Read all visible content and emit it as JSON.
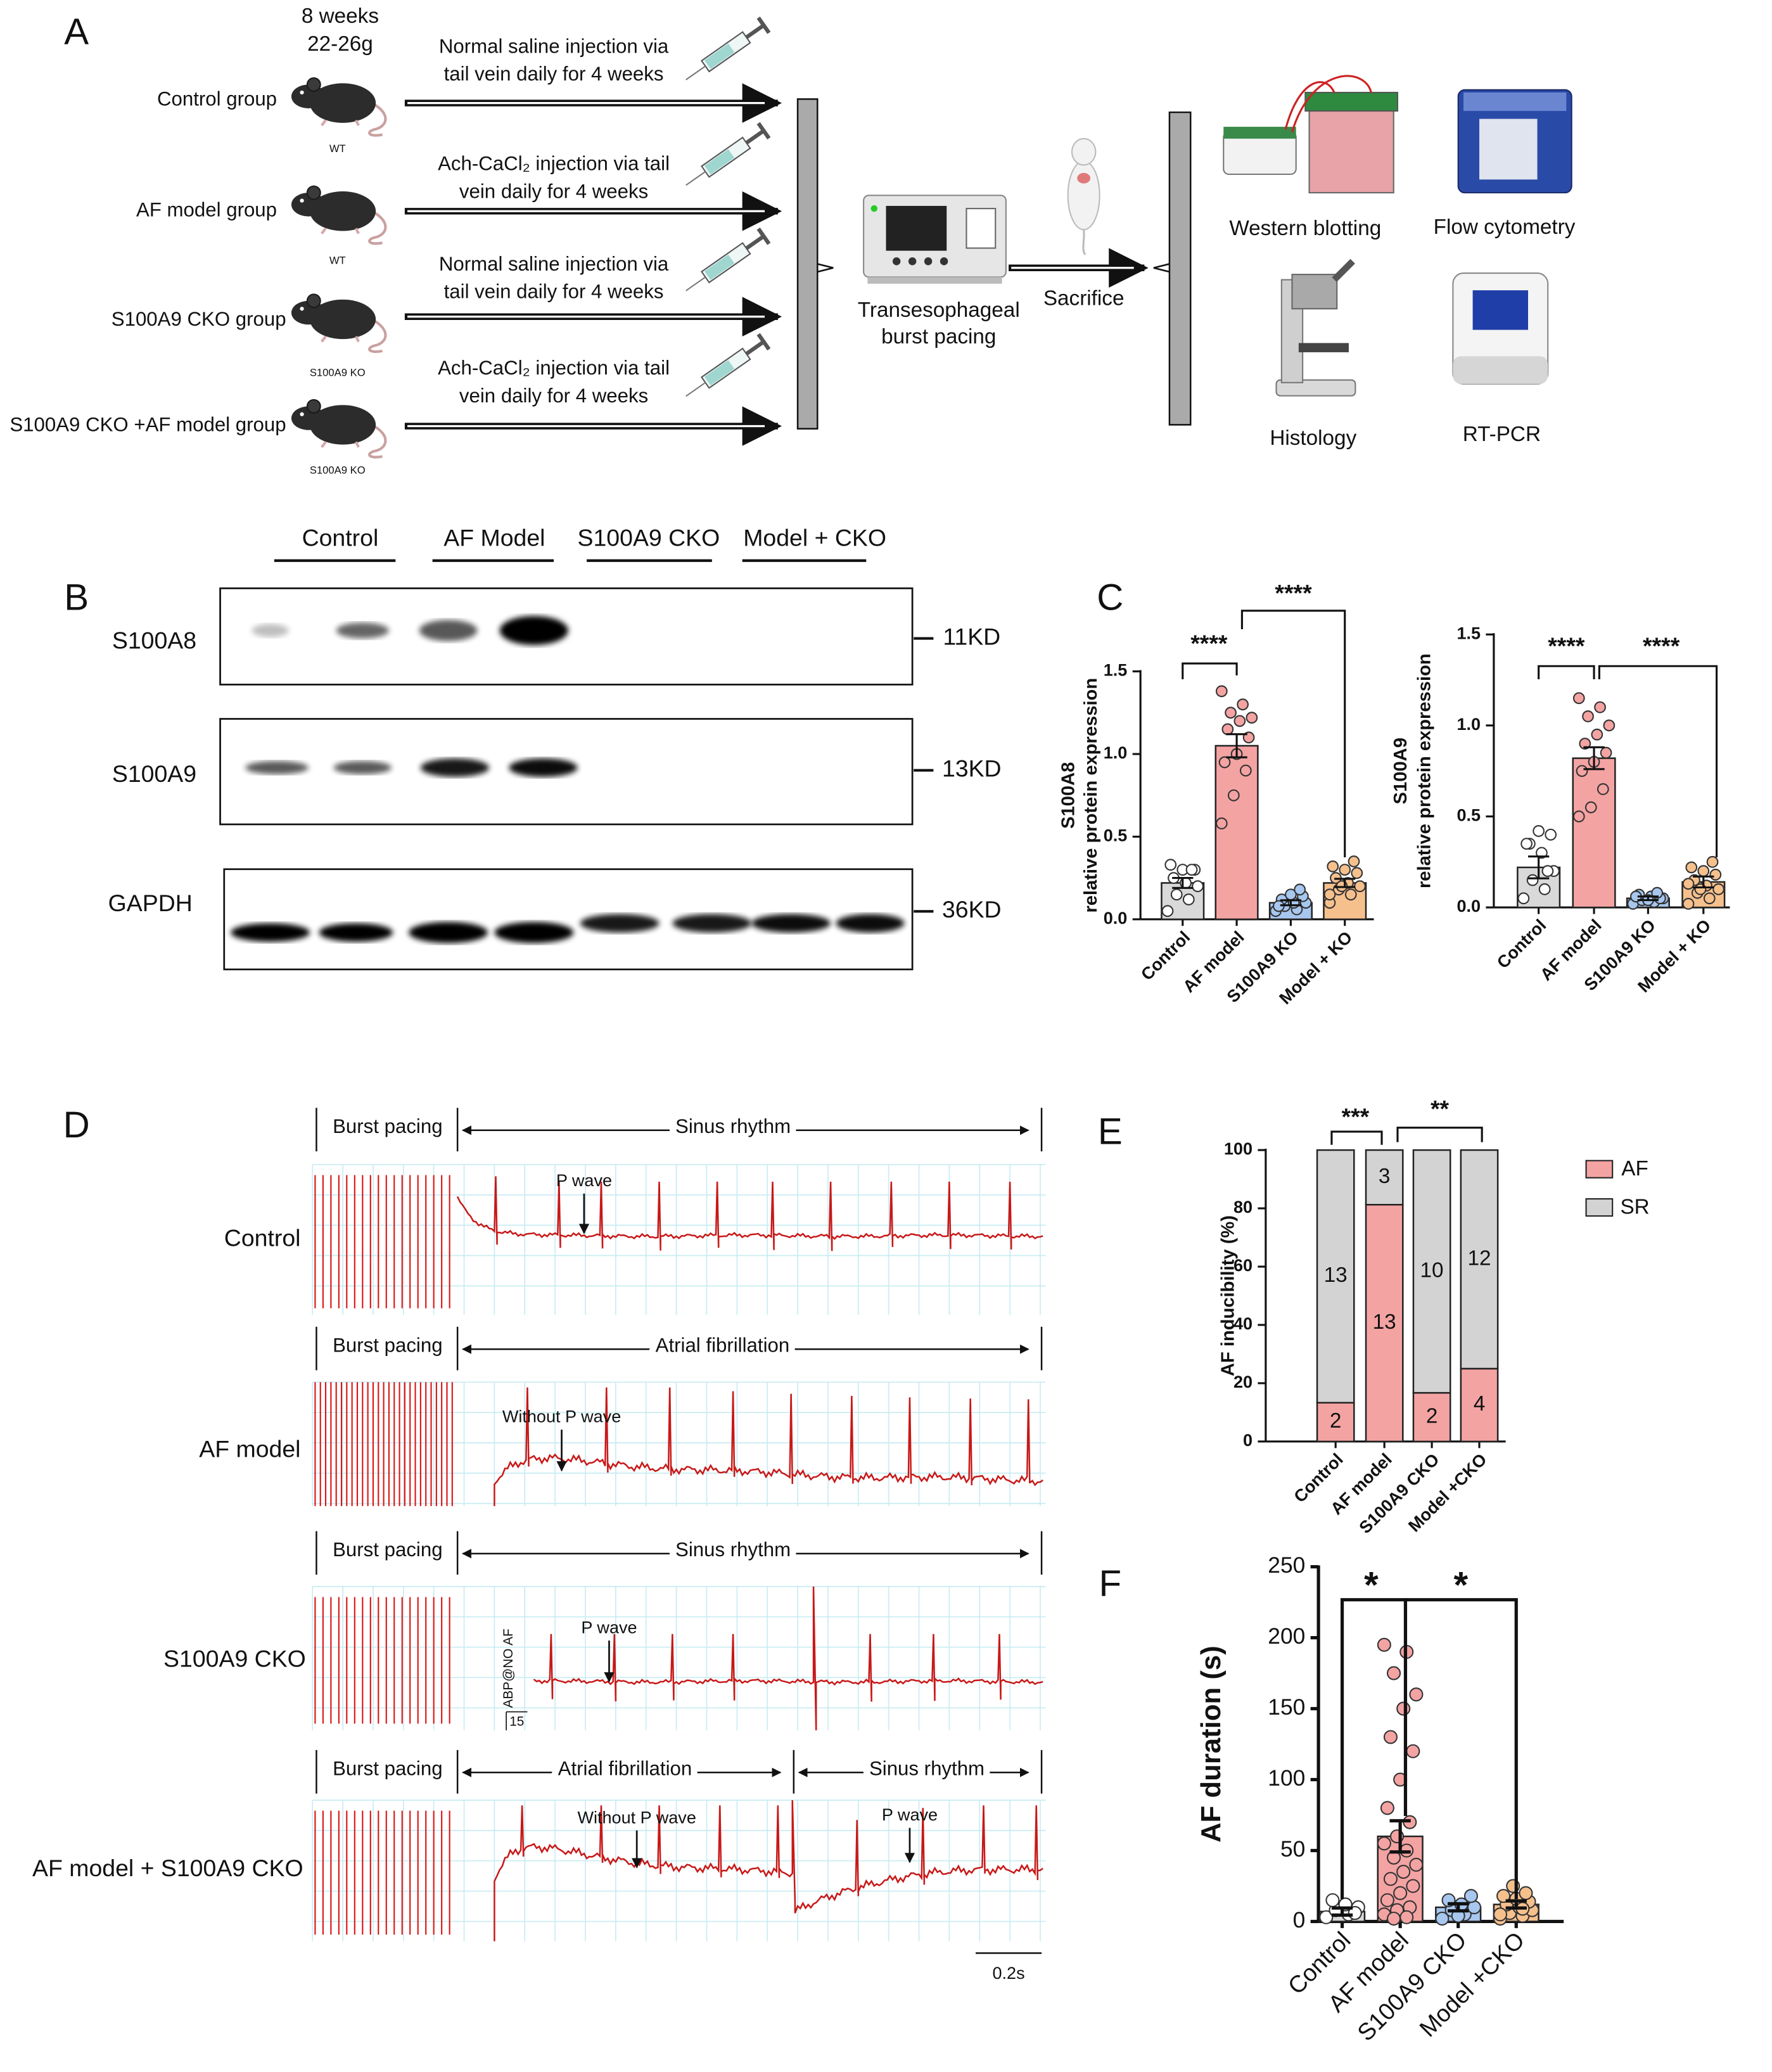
{
  "panel_a": {
    "label": "A",
    "age": "8 weeks",
    "weight": "22-26g",
    "groups": [
      {
        "name": "Control group",
        "genotype": "WT",
        "treatment": [
          "Normal saline injection via",
          "tail vein daily for 4 weeks"
        ]
      },
      {
        "name": "AF model group",
        "genotype": "WT",
        "treatment": [
          "Ach-CaCl₂ injection via tail",
          "vein daily for 4 weeks"
        ]
      },
      {
        "name": "S100A9 CKO group",
        "genotype": "S100A9 KO",
        "treatment": [
          "Normal saline injection via",
          "tail vein daily for 4 weeks"
        ]
      },
      {
        "name": "S100A9 CKO +AF model group",
        "genotype": "S100A9 KO",
        "treatment": [
          "Ach-CaCl₂ injection via tail",
          "vein daily for 4 weeks"
        ]
      }
    ],
    "pacing": [
      "Transesophageal",
      "burst pacing"
    ],
    "sacrifice": "Sacrifice",
    "assays": [
      "Western blotting",
      "Flow cytometry",
      "Histology",
      "RT-PCR"
    ]
  },
  "panel_b": {
    "label": "B",
    "lanes": [
      "Control",
      "AF Model",
      "S100A9 CKO",
      "Model + CKO"
    ],
    "blots": [
      {
        "name": "S100A8",
        "size": "11KD"
      },
      {
        "name": "S100A9",
        "size": "13KD"
      },
      {
        "name": "GAPDH",
        "size": "36KD"
      }
    ]
  },
  "panel_d": {
    "label": "D",
    "rows": [
      {
        "name": "Control",
        "segments": [
          "Burst pacing",
          "Sinus rhythm"
        ],
        "annotations": [
          "P wave"
        ]
      },
      {
        "name": "AF model",
        "segments": [
          "Burst pacing",
          "Atrial fibrillation"
        ],
        "annotations": [
          "Without P wave"
        ]
      },
      {
        "name": "S100A9 CKO",
        "segments": [
          "Burst pacing",
          "Sinus rhythm"
        ],
        "annotations": [
          "P wave",
          "ABP@NO AF",
          "15"
        ]
      },
      {
        "name": "AF model + S100A9 CKO",
        "segments": [
          "Burst pacing",
          "Atrial fibrillation",
          "Sinus rhythm"
        ],
        "annotations": [
          "Without P wave",
          "P wave"
        ]
      }
    ],
    "scale": "0.2s"
  },
  "chart_data": [
    {
      "type": "bar",
      "label": "C",
      "ylabel": [
        "S100A8",
        "relative protein expression"
      ],
      "categories": [
        "Control",
        "AF model",
        "S100A9 KO",
        "Model + KO"
      ],
      "values": [
        0.22,
        1.05,
        0.1,
        0.22
      ],
      "errors": [
        0.03,
        0.07,
        0.015,
        0.025
      ],
      "points": [
        [
          0.05,
          0.12,
          0.15,
          0.2,
          0.22,
          0.25,
          0.3,
          0.3,
          0.33,
          0.3
        ],
        [
          1.38,
          1.3,
          1.25,
          1.22,
          1.2,
          1.15,
          1.1,
          1.0,
          0.95,
          0.9,
          0.75,
          0.58
        ],
        [
          0.05,
          0.06,
          0.08,
          0.1,
          0.1,
          0.12,
          0.14,
          0.15,
          0.08,
          0.18
        ],
        [
          0.1,
          0.15,
          0.18,
          0.2,
          0.22,
          0.25,
          0.28,
          0.3,
          0.32,
          0.35,
          0.2,
          0.15
        ]
      ],
      "colors": [
        "#d9d9d9",
        "#f4a3a3",
        "#a7c7ef",
        "#f6c08d"
      ],
      "ylim": [
        0,
        1.5
      ],
      "yticks": [
        {
          "value": 0,
          "label": "0.0"
        },
        0.5,
        {
          "value": 1,
          "label": "1.0"
        },
        1.5
      ],
      "significance": [
        "****",
        "****"
      ]
    },
    {
      "type": "bar",
      "label": "",
      "ylabel": [
        "S100A9",
        "relative protein expression"
      ],
      "categories": [
        "Control",
        "AF model",
        "S100A9 KO",
        "Model + KO"
      ],
      "values": [
        0.22,
        0.82,
        0.05,
        0.14
      ],
      "errors": [
        0.06,
        0.06,
        0.01,
        0.03
      ],
      "points": [
        [
          0.05,
          0.1,
          0.15,
          0.2,
          0.3,
          0.35,
          0.4,
          0.42,
          0.35,
          0.2
        ],
        [
          1.15,
          1.1,
          1.05,
          1.0,
          0.95,
          0.9,
          0.85,
          0.8,
          0.75,
          0.65,
          0.55,
          0.5
        ],
        [
          0.02,
          0.03,
          0.04,
          0.05,
          0.06,
          0.07,
          0.05,
          0.04,
          0.06,
          0.08
        ],
        [
          0.02,
          0.05,
          0.08,
          0.1,
          0.12,
          0.15,
          0.18,
          0.2,
          0.22,
          0.25,
          0.1,
          0.13
        ]
      ],
      "colors": [
        "#d9d9d9",
        "#f4a3a3",
        "#a7c7ef",
        "#f6c08d"
      ],
      "ylim": [
        0,
        1.5
      ],
      "yticks": [
        {
          "value": 0,
          "label": "0.0"
        },
        0.5,
        {
          "value": 1,
          "label": "1.0"
        },
        1.5
      ],
      "significance": [
        "****",
        "****"
      ]
    },
    {
      "type": "stacked_bar",
      "label": "E",
      "ylabel": [
        "AF inducibility (%)"
      ],
      "categories": [
        "Control",
        "AF model",
        "S100A9 CKO",
        "Model +CKO"
      ],
      "series": [
        {
          "name": "AF",
          "color": "#f4a3a3",
          "values": [
            13.3,
            81.25,
            16.7,
            25
          ],
          "counts": [
            2,
            13,
            2,
            4
          ]
        },
        {
          "name": "SR",
          "color": "#d3d3d3",
          "values": [
            86.7,
            18.75,
            83.3,
            75
          ],
          "counts": [
            13,
            3,
            10,
            12
          ]
        }
      ],
      "ylim": [
        0,
        100
      ],
      "yticks": [
        0,
        20,
        40,
        60,
        80,
        100
      ],
      "legend": "right",
      "significance": [
        "***",
        "**"
      ]
    },
    {
      "type": "bar",
      "label": "F",
      "ylabel": [
        "AF duration (s)"
      ],
      "categories": [
        "Control",
        "AF model",
        "S100A9 CKO",
        "Model +CKO"
      ],
      "values": [
        7,
        60,
        10,
        12
      ],
      "errors": [
        2.5,
        11,
        2.5,
        2.5
      ],
      "points": [
        [
          3,
          5,
          8,
          10,
          12,
          15,
          6
        ],
        [
          195,
          190,
          175,
          160,
          150,
          130,
          120,
          100,
          80,
          70,
          60,
          55,
          50,
          45,
          40,
          35,
          30,
          25,
          20,
          15,
          10,
          8,
          5,
          3,
          2
        ],
        [
          2,
          5,
          8,
          10,
          12,
          15,
          18,
          4
        ],
        [
          2,
          4,
          6,
          8,
          10,
          12,
          14,
          16,
          18,
          20,
          25,
          5,
          9
        ]
      ],
      "colors": [
        "#d9d9d9",
        "#f4a3a3",
        "#a7c7ef",
        "#f6c08d"
      ],
      "ylim": [
        0,
        250
      ],
      "yticks": [
        0,
        50,
        100,
        150,
        200,
        250
      ],
      "significance": [
        "*",
        "*"
      ]
    }
  ]
}
